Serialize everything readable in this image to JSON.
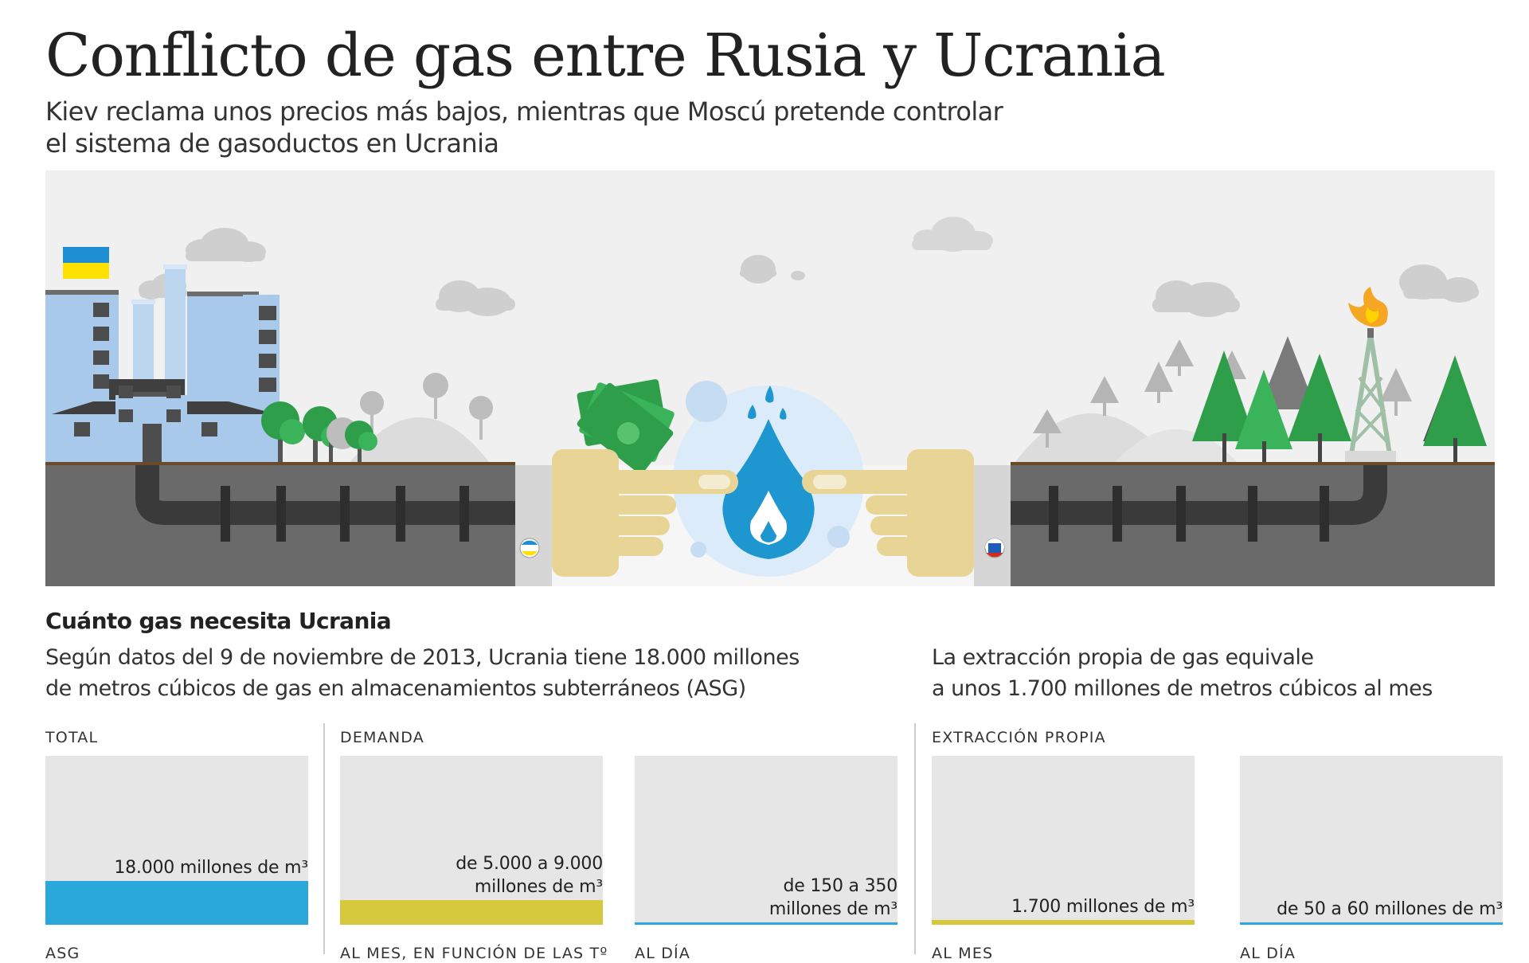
{
  "header": {
    "title": "Conflicto de gas entre Rusia y Ucrania",
    "subtitle_lines": [
      "Kiev reclama unos precios más bajos, mientras que Moscú pretende controlar",
      "el sistema de gasoductos en Ucrania"
    ]
  },
  "colors": {
    "ukraine_blue": "#1d8fd2",
    "ukraine_yellow": "#ffe100",
    "gas_blue": "#2aa8dc",
    "demand_yellow": "#d6c83c",
    "money_green": "#2e9e4a",
    "ground": "#6a6a6a",
    "sky": "#f0f0f0"
  },
  "illustration": {
    "left_flag": "ukraine-flag",
    "center_icon": "gas-flame-drop-icon",
    "money_icon": "banknotes-icon",
    "left_badge": "ukraine-badge-icon",
    "right_badge": "russia-badge-icon"
  },
  "section": {
    "title": "Cuánto gas necesita Ucrania",
    "left_text": [
      "Según datos del 9 de noviembre de 2013, Ucrania tiene 18.000 millones",
      "de metros cúbicos de gas en almacenamientos subterráneos (ASG)"
    ],
    "right_text": [
      "La extracción propia de gas equivale",
      "a unos 1.700 millones de metros cúbicos al mes"
    ]
  },
  "groups": {
    "total": "TOTAL",
    "demanda": "DEMANDA",
    "extraccion": "EXTRACCIÓN PROPIA"
  },
  "panels": [
    {
      "id": "asg",
      "caption_lines": [
        "18.000 millones de m³"
      ],
      "bottom_label": "ASG",
      "fill_fraction": 0.26,
      "color": "#2aa8dc"
    },
    {
      "id": "dem-mes",
      "caption_lines": [
        "de 5.000 a 9.000",
        "millones de m³"
      ],
      "bottom_label": "AL MES, EN FUNCIÓN DE LAS Tº",
      "fill_fraction": 0.145,
      "color": "#d6c83c"
    },
    {
      "id": "dem-dia",
      "caption_lines": [
        "de 150 a 350",
        "millones de m³"
      ],
      "bottom_label": "AL DÍA",
      "fill_fraction": 0.012,
      "color": "#2aa8dc"
    },
    {
      "id": "ext-mes",
      "caption_lines": [
        "1.700 millones de m³"
      ],
      "bottom_label": "AL MES",
      "fill_fraction": 0.03,
      "color": "#d6c83c"
    },
    {
      "id": "ext-dia",
      "caption_lines": [
        "de 50 a 60 millones de m³"
      ],
      "bottom_label": "AL DÍA",
      "fill_fraction": 0.008,
      "color": "#2aa8dc"
    }
  ]
}
